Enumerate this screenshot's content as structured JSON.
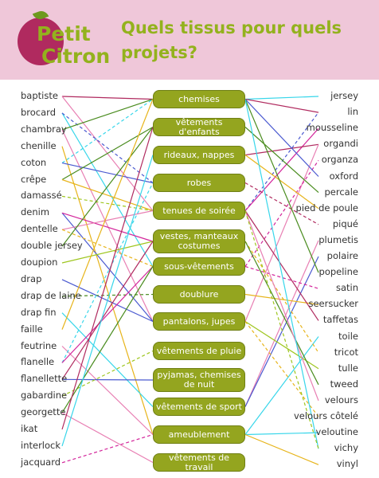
{
  "header": {
    "logo_line1": "Petit",
    "logo_line2": "Citron",
    "title": "Quels tissus pour quels projets?",
    "background": "#efc7d9",
    "accent": "#93b21d"
  },
  "fabrics_left": [
    "baptiste",
    "brocard",
    "chambray",
    "chenille",
    "coton",
    "crêpe",
    "damassé",
    "denim",
    "dentelle",
    "double jersey",
    "doupion",
    "drap",
    "drap de laine",
    "drap fin",
    "faille",
    "feutrine",
    "flanelle",
    "flanellette",
    "gabardine",
    "georgette",
    "ikat",
    "interlock",
    "jacquard"
  ],
  "fabrics_right": [
    "jersey",
    "lin",
    "mousseline",
    "organdi",
    "organza",
    "oxford",
    "percale",
    "pied de poule",
    "piqué",
    "plumetis",
    "polaire",
    "popeline",
    "satin",
    "seersucker",
    "taffetas",
    "toile",
    "tricot",
    "tulle",
    "tweed",
    "velours",
    "velours côtelé",
    "veloutine",
    "vichy",
    "vinyl"
  ],
  "projects": [
    "chemises",
    "vêtements d'enfants",
    "rideaux, nappes",
    "robes",
    "tenues de soirée",
    "vestes, manteaux costumes",
    "sous-vêtements",
    "doublure",
    "pantalons, jupes",
    "vêtements de pluie",
    "pyjamas, chemises de nuit",
    "vêtements de sport",
    "ameublement",
    "vêtements de travail"
  ],
  "colors": {
    "project_box": "#94a51f",
    "lines": [
      "#b02a5f",
      "#e87fb3",
      "#37d6ea",
      "#4b5ad0",
      "#4a8c1f",
      "#e7b41a",
      "#9ec61f",
      "#d3259b"
    ]
  }
}
